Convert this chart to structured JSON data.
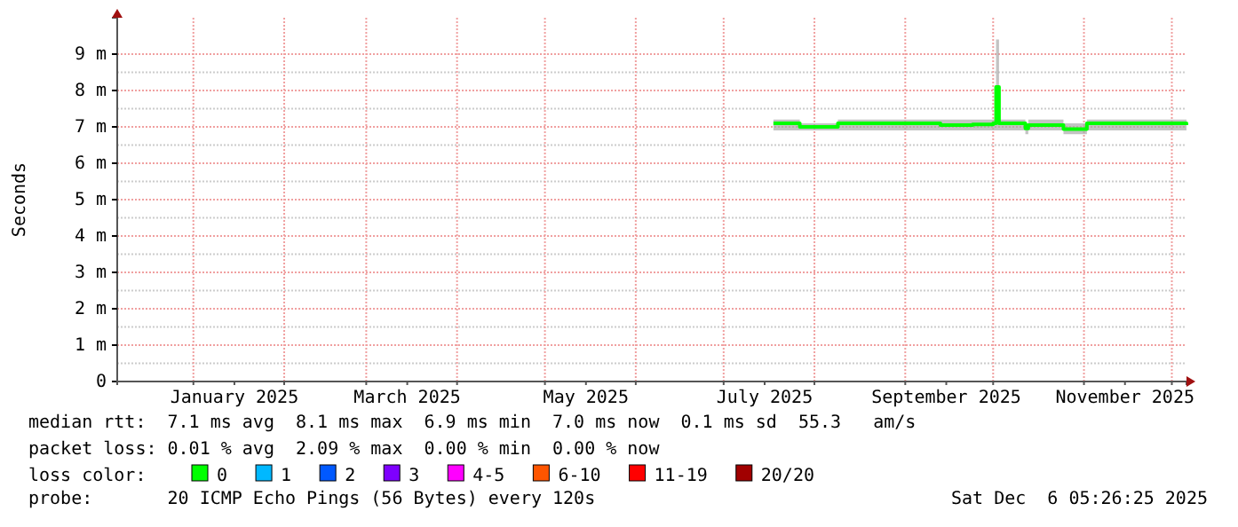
{
  "chart_data": {
    "type": "line",
    "ylabel": "Seconds",
    "legend_title": "loss color:",
    "legend": "bottom",
    "grid": true,
    "xlim": [
      "2024-12-06",
      "2025-12-06"
    ],
    "xticks": [
      {
        "value": "2025-01-01",
        "label": null
      },
      {
        "value": "2025-01-15",
        "label": "January 2025"
      },
      {
        "value": "2025-02-01",
        "label": null
      },
      {
        "value": "2025-03-01",
        "label": null
      },
      {
        "value": "2025-03-15",
        "label": "March 2025"
      },
      {
        "value": "2025-04-01",
        "label": null
      },
      {
        "value": "2025-05-01",
        "label": null
      },
      {
        "value": "2025-05-15",
        "label": "May 2025"
      },
      {
        "value": "2025-06-01",
        "label": null
      },
      {
        "value": "2025-07-01",
        "label": null
      },
      {
        "value": "2025-07-15",
        "label": "July 2025"
      },
      {
        "value": "2025-08-01",
        "label": null
      },
      {
        "value": "2025-09-01",
        "label": null
      },
      {
        "value": "2025-09-15",
        "label": "September 2025"
      },
      {
        "value": "2025-10-01",
        "label": null
      },
      {
        "value": "2025-11-01",
        "label": null
      },
      {
        "value": "2025-11-15",
        "label": "November 2025"
      },
      {
        "value": "2025-12-01",
        "label": null
      }
    ],
    "ylim": [
      0,
      10
    ],
    "yticks": [
      {
        "value": 0,
        "label": "0"
      },
      {
        "value": 1,
        "label": "1 m"
      },
      {
        "value": 2,
        "label": "2 m"
      },
      {
        "value": 3,
        "label": "3 m"
      },
      {
        "value": 4,
        "label": "4 m"
      },
      {
        "value": 5,
        "label": "5 m"
      },
      {
        "value": 6,
        "label": "6 m"
      },
      {
        "value": 7,
        "label": "7 m"
      },
      {
        "value": 8,
        "label": "8 m"
      },
      {
        "value": 9,
        "label": "9 m"
      }
    ],
    "x": [
      "2025-07-18",
      "2025-07-26",
      "2025-07-27",
      "2025-08-08",
      "2025-08-09",
      "2025-08-25",
      "2025-09-13",
      "2025-09-24",
      "2025-10-01",
      "2025-10-02",
      "2025-10-03",
      "2025-10-11",
      "2025-10-12",
      "2025-10-13",
      "2025-10-25",
      "2025-11-01",
      "2025-11-02",
      "2025-12-06"
    ],
    "series": [
      {
        "name": "0",
        "color": "#00ff00",
        "values": [
          7.1,
          7.1,
          7.0,
          7.0,
          7.1,
          7.1,
          7.05,
          7.07,
          7.1,
          8.1,
          7.1,
          7.1,
          6.96,
          7.05,
          6.94,
          6.94,
          7.1,
          7.05
        ],
        "lower": [
          6.9,
          6.9,
          6.9,
          6.9,
          6.9,
          6.9,
          6.9,
          6.9,
          6.9,
          6.9,
          6.9,
          6.9,
          6.8,
          6.9,
          6.8,
          6.8,
          6.9,
          6.9
        ],
        "upper": [
          7.2,
          7.2,
          7.1,
          7.1,
          7.2,
          7.2,
          7.2,
          7.2,
          7.2,
          9.4,
          7.2,
          7.2,
          7.1,
          7.2,
          7.1,
          7.1,
          7.2,
          7.2
        ]
      },
      {
        "name": "1",
        "color": "#00b8ff",
        "values": [
          null,
          null,
          null,
          null,
          null,
          null,
          null,
          null,
          null,
          null,
          null,
          null,
          null,
          null,
          null,
          null,
          null,
          null
        ]
      },
      {
        "name": "2",
        "color": "#0059ff",
        "values": [
          null,
          null,
          null,
          null,
          null,
          null,
          null,
          null,
          null,
          null,
          null,
          null,
          null,
          null,
          null,
          null,
          null,
          null
        ]
      },
      {
        "name": "3",
        "color": "#7e00ff",
        "values": [
          null,
          null,
          null,
          null,
          null,
          null,
          null,
          null,
          null,
          null,
          null,
          null,
          null,
          null,
          null,
          null,
          null,
          null
        ]
      },
      {
        "name": "4-5",
        "color": "#ff00ff",
        "values": [
          null,
          null,
          null,
          null,
          null,
          null,
          null,
          null,
          null,
          null,
          null,
          null,
          null,
          null,
          null,
          null,
          null,
          null
        ]
      },
      {
        "name": "6-10",
        "color": "#ff5500",
        "values": [
          null,
          null,
          null,
          null,
          null,
          null,
          null,
          null,
          null,
          null,
          null,
          null,
          null,
          null,
          null,
          null,
          null,
          null
        ]
      },
      {
        "name": "11-19",
        "color": "#ff0000",
        "values": [
          null,
          null,
          null,
          null,
          null,
          null,
          null,
          null,
          null,
          null,
          null,
          null,
          null,
          null,
          null,
          null,
          null,
          null
        ]
      },
      {
        "name": "20/20",
        "color": "#a10000",
        "values": [
          null,
          null,
          null,
          null,
          null,
          null,
          null,
          null,
          null,
          null,
          null,
          null,
          null,
          null,
          null,
          null,
          null,
          null
        ]
      }
    ],
    "annotations": [
      "median rtt:  7.1 ms avg  8.1 ms max  6.9 ms min  7.0 ms now  0.1 ms sd  55.3   am/s",
      "packet loss: 0.01 % avg  2.09 % max  0.00 % min  0.00 % now",
      "probe:       20 ICMP Echo Pings (56 Bytes) every 120s",
      "Sat Dec  6 05:26:25 2025"
    ]
  }
}
